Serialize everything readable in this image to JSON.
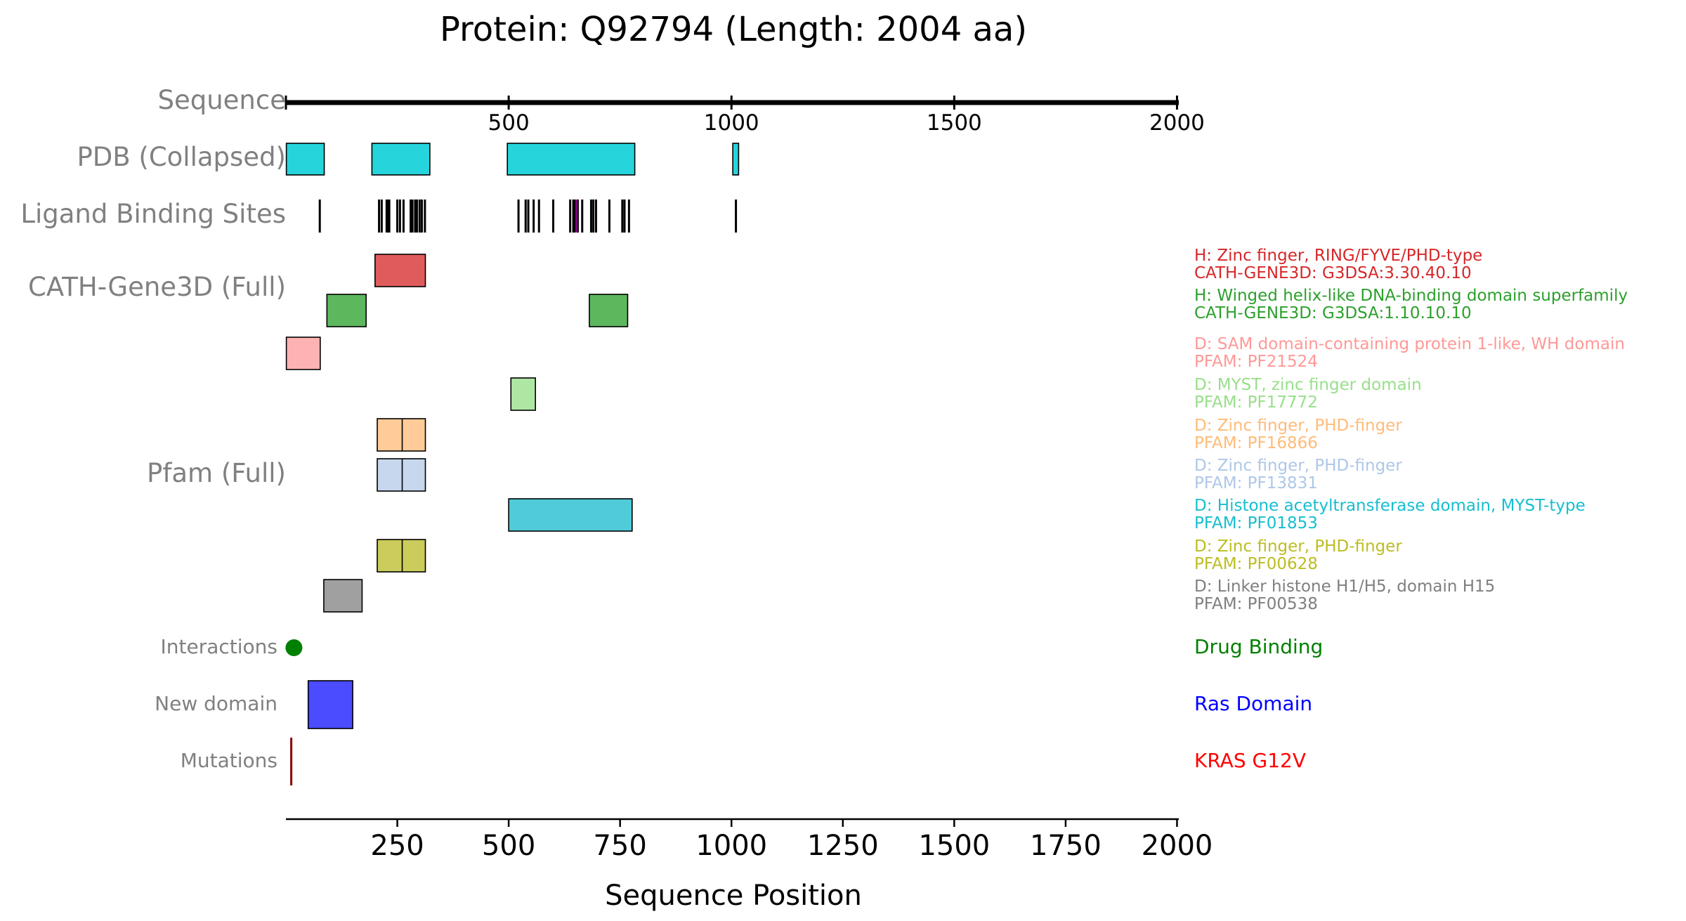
{
  "chart_data": {
    "type": "protein-domain-track",
    "title": "Protein: Q92794 (Length: 2004 aa)",
    "xlabel": "Sequence Position",
    "xlim": [
      0,
      2004
    ],
    "bottom_ticks": [
      250,
      500,
      750,
      1000,
      1250,
      1500,
      1750,
      2000
    ],
    "top_ticks": [
      500,
      1000,
      1500,
      2000
    ],
    "track_labels": {
      "sequence": "Sequence",
      "pdb": "PDB (Collapsed)",
      "ligand": "Ligand Binding Sites",
      "cath": "CATH-Gene3D (Full)",
      "pfam": "Pfam (Full)",
      "interactions": "Interactions",
      "new_domain": "New domain",
      "mutations": "Mutations"
    },
    "pdb_segments": [
      {
        "start": 1,
        "end": 86
      },
      {
        "start": 193,
        "end": 323
      },
      {
        "start": 497,
        "end": 783
      },
      {
        "start": 1003,
        "end": 1016
      }
    ],
    "ligand_sites": [
      76,
      209,
      215,
      226,
      230,
      232,
      250,
      256,
      264,
      280,
      284,
      290,
      294,
      300,
      305,
      312,
      522,
      538,
      544,
      556,
      568,
      600,
      638,
      645,
      648,
      655,
      665,
      685,
      690,
      696,
      726,
      755,
      760,
      770,
      1010
    ],
    "ligand_colored_sites": [
      {
        "position": 652,
        "color": "#800080"
      }
    ],
    "cath_domains": [
      {
        "start": 200,
        "end": 313,
        "color": "#e05c5c",
        "label_line1": "H: Zinc finger, RING/FYVE/PHD-type",
        "label_line2": "CATH-GENE3D: G3DSA:3.30.40.10",
        "text_color": "#d62728"
      },
      {
        "start": 92,
        "end": 180,
        "color": "#5db85d",
        "label_line1": "H: Winged helix-like DNA-binding domain superfamily",
        "label_line2": "CATH-GENE3D: G3DSA:1.10.10.10",
        "text_color": "#2ca02c",
        "extra_start": 681,
        "extra_end": 767
      }
    ],
    "pfam_domains": [
      {
        "start": 1,
        "end": 77,
        "color": "#ffb2b2",
        "label_line1": "D: SAM domain-containing protein 1-like, WH domain",
        "label_line2": "PFAM: PF21524",
        "text_color": "#ff9896"
      },
      {
        "start": 505,
        "end": 560,
        "color": "#aee6a3",
        "label_line1": "D: MYST, zinc finger domain",
        "label_line2": "PFAM: PF17772",
        "text_color": "#98df8a"
      },
      {
        "start": 205,
        "end": 313,
        "color": "#ffcc99",
        "label_line1": "D: Zinc finger, PHD-finger",
        "label_line2": "PFAM: PF16866",
        "text_color": "#ffbb78",
        "divider": 261
      },
      {
        "start": 205,
        "end": 313,
        "color": "#c6d7ee",
        "label_line1": "D: Zinc finger, PHD-finger",
        "label_line2": "PFAM: PF13831",
        "text_color": "#aec7e8",
        "divider": 261
      },
      {
        "start": 500,
        "end": 777,
        "color": "#4fcbd9",
        "label_line1": "D: Histone acetyltransferase domain, MYST-type",
        "label_line2": "PFAM: PF01853",
        "text_color": "#17becf"
      },
      {
        "start": 205,
        "end": 313,
        "color": "#cccc5c",
        "label_line1": "D: Zinc finger, PHD-finger",
        "label_line2": "PFAM: PF00628",
        "text_color": "#bcbd22",
        "divider": 261
      },
      {
        "start": 85,
        "end": 171,
        "color": "#a0a0a0",
        "label_line1": "D: Linker histone H1/H5, domain H15",
        "label_line2": "PFAM: PF00538",
        "text_color": "#7f7f7f"
      }
    ],
    "interactions": [
      {
        "position": 18,
        "label": "Drug Binding",
        "color": "#008000"
      }
    ],
    "new_domains": [
      {
        "start": 50,
        "end": 150,
        "label": "Ras Domain",
        "color": "#4b4bff",
        "text_color": "#0000ff"
      }
    ],
    "mutations": [
      {
        "position": 12,
        "label": "KRAS G12V",
        "color": "#8b0000",
        "text_color": "#ff0000"
      }
    ]
  }
}
